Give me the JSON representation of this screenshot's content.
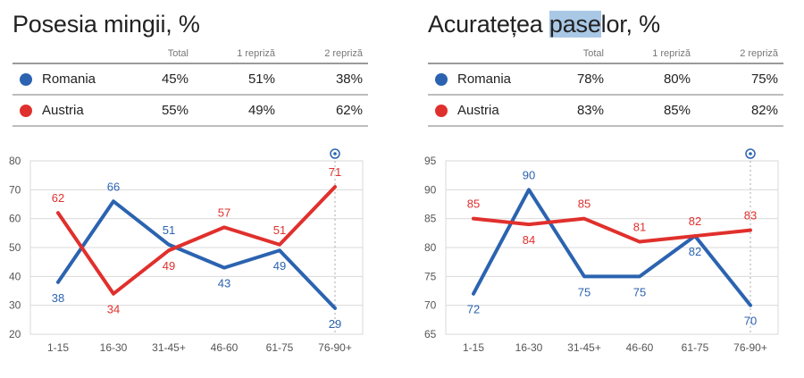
{
  "colors": {
    "romania": "#2b63b0",
    "austria": "#e0302d",
    "grid": "#d9d9d9",
    "axis_text": "#555555"
  },
  "stats_header": {
    "total": "Total",
    "half1": "1 repriză",
    "half2": "2 repriză"
  },
  "left": {
    "title": "Posesia mingii, %",
    "rows": [
      {
        "team": "Romania",
        "total": "45%",
        "half1": "51%",
        "half2": "38%"
      },
      {
        "team": "Austria",
        "total": "55%",
        "half1": "49%",
        "half2": "62%"
      }
    ]
  },
  "right": {
    "title_pre": "Acuratețea ",
    "title_hl": "pase",
    "title_post": "lor, %",
    "rows": [
      {
        "team": "Romania",
        "total": "78%",
        "half1": "80%",
        "half2": "75%"
      },
      {
        "team": "Austria",
        "total": "83%",
        "half1": "85%",
        "half2": "82%"
      }
    ]
  },
  "chart_data": [
    {
      "type": "line",
      "categories": [
        "1-15",
        "16-30",
        "31-45+",
        "46-60",
        "61-75",
        "76-90+"
      ],
      "series": [
        {
          "name": "Romania",
          "values": [
            38,
            66,
            51,
            43,
            49,
            29
          ]
        },
        {
          "name": "Austria",
          "values": [
            62,
            34,
            49,
            57,
            51,
            71
          ]
        }
      ],
      "yticks": [
        20,
        30,
        40,
        50,
        60,
        70,
        80
      ],
      "ylim": [
        20,
        80
      ],
      "grid": true,
      "goal_marker_category": "76-90+"
    },
    {
      "type": "line",
      "categories": [
        "1-15",
        "16-30",
        "31-45+",
        "46-60",
        "61-75",
        "76-90+"
      ],
      "series": [
        {
          "name": "Romania",
          "values": [
            72,
            90,
            75,
            75,
            82,
            70
          ]
        },
        {
          "name": "Austria",
          "values": [
            85,
            84,
            85,
            81,
            82,
            83
          ]
        }
      ],
      "yticks": [
        65,
        70,
        75,
        80,
        85,
        90,
        95
      ],
      "ylim": [
        65,
        95
      ],
      "grid": true,
      "goal_marker_category": "76-90+"
    }
  ]
}
